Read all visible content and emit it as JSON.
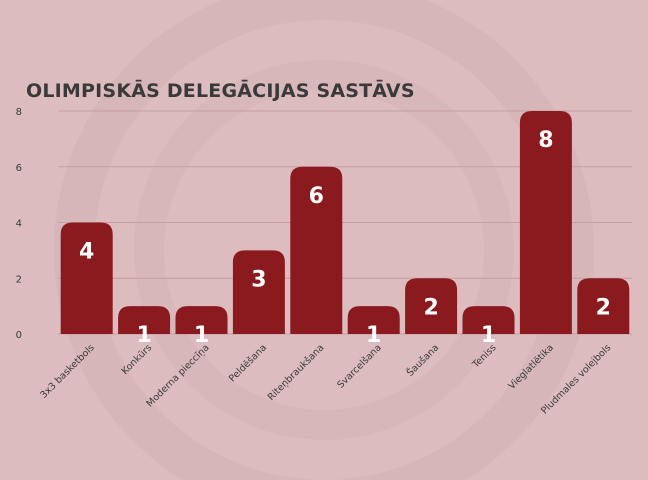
{
  "chart_data": {
    "type": "bar",
    "title": "OLIMPISKĀS DELEGĀCIJAS SASTĀVS",
    "categories": [
      "3x3 basketbols",
      "Konkūrs",
      "Moderna pieccīņa",
      "Peldēšana",
      "Riteņbraukšana",
      "Svarcelšana",
      "Šaušana",
      "Teniss",
      "Vieglatlētika",
      "Pludmales volejbols"
    ],
    "values": [
      4,
      1,
      1,
      3,
      6,
      1,
      2,
      1,
      8,
      2
    ],
    "ylim": [
      0,
      8
    ],
    "yticks": [
      0,
      2,
      4,
      6,
      8
    ],
    "grid": true,
    "xlabel": "",
    "ylabel": ""
  },
  "colors": {
    "background": "#dcbcbf",
    "bar": "#8a1a1e",
    "bar_label": "#ffffff",
    "text": "#3a3a3a",
    "grid": "#c49ea2"
  }
}
